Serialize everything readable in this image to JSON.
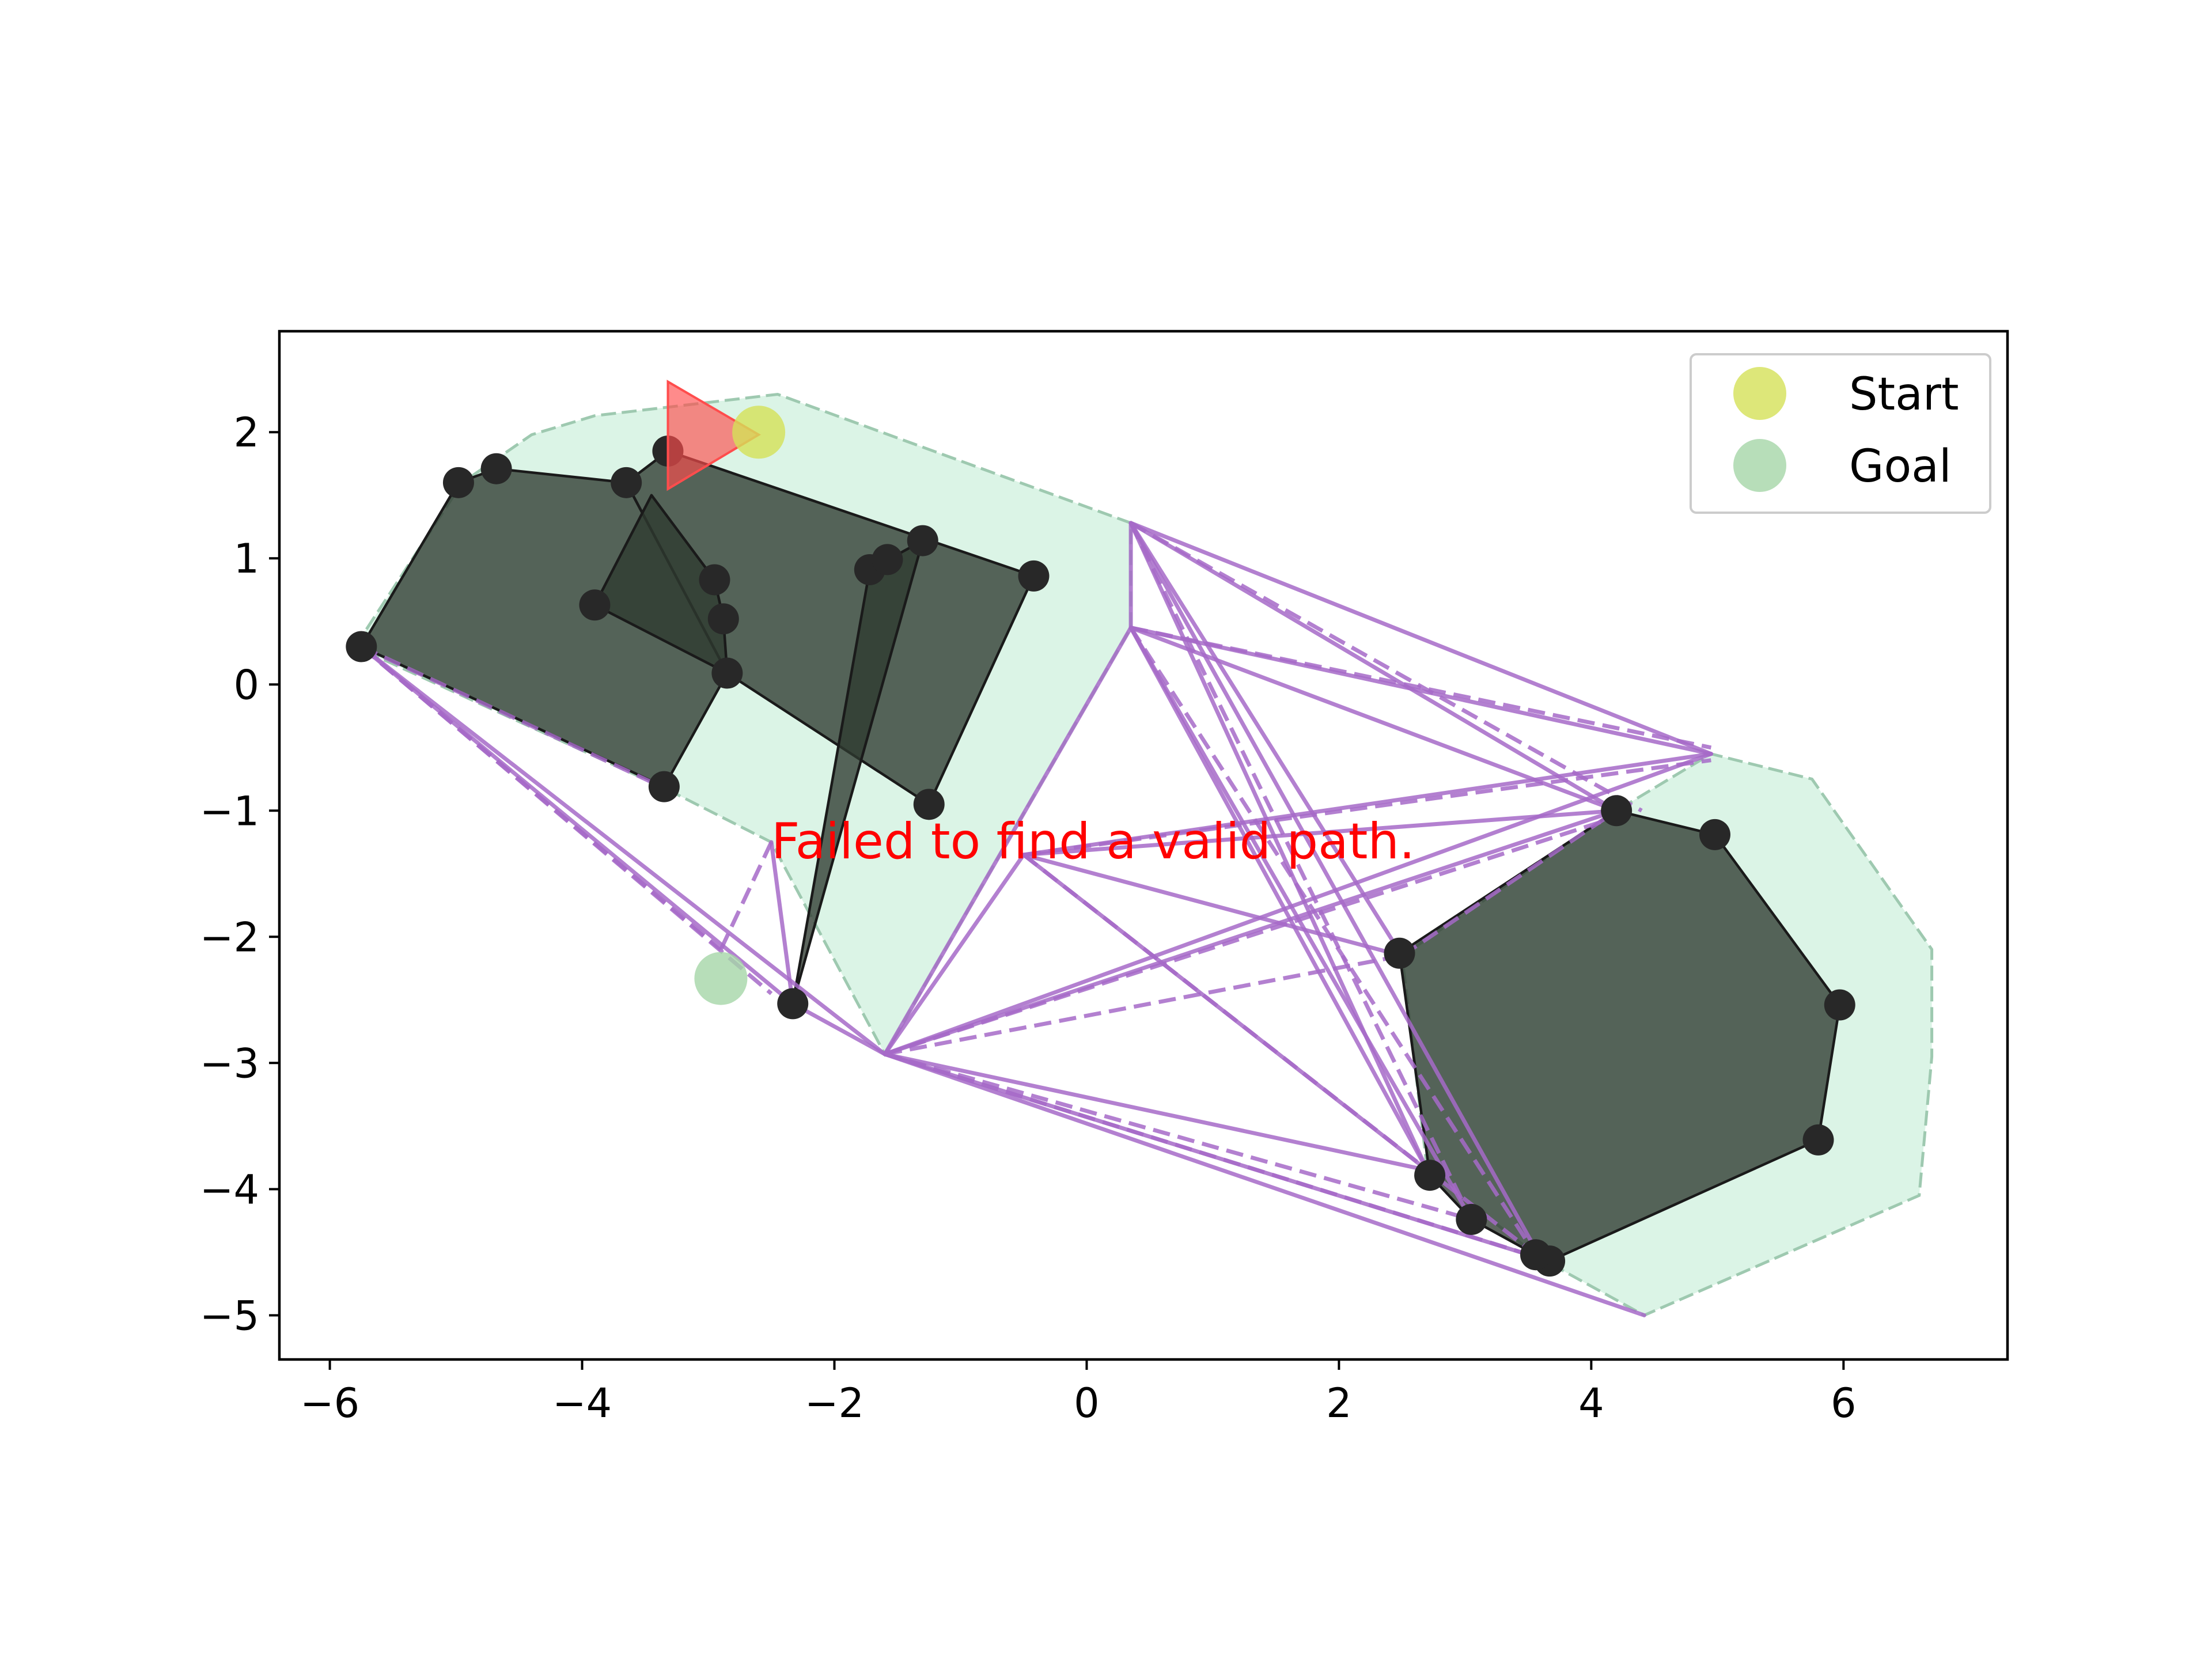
{
  "chart_data": {
    "type": "scatter",
    "title": "",
    "xlabel": "",
    "ylabel": "",
    "xlim": [
      -6.4,
      7.3
    ],
    "ylim": [
      -5.35,
      2.8
    ],
    "xticks": [
      -6,
      -4,
      -2,
      0,
      2,
      4,
      6
    ],
    "yticks": [
      -5,
      -4,
      -3,
      -2,
      -1,
      0,
      1,
      2
    ],
    "grid": false,
    "legend": {
      "placement": "top-right",
      "entries": [
        {
          "label": "Start",
          "color": "#d4e157"
        },
        {
          "label": "Goal",
          "color": "#a5d6a7"
        }
      ]
    },
    "message": {
      "text": "Failed to find a valid path.",
      "x": -2.5,
      "y": -1.25,
      "color": "#ff0000"
    },
    "start": {
      "x": -2.6,
      "y": 2.0
    },
    "goal": {
      "x": -2.9,
      "y": -2.33
    },
    "robot": {
      "type": "triangle",
      "vertices": [
        [
          -3.32,
          2.4
        ],
        [
          -3.32,
          1.55
        ],
        [
          -2.6,
          1.98
        ]
      ],
      "color": "#ff4d4d"
    },
    "colors": {
      "obstacle": "#2e3a30",
      "inflated": "#c8eed8",
      "roadmap": "#a66ac8",
      "vertex": "#282828"
    },
    "inflated_regions": [
      [
        [
          -5.8,
          0.3
        ],
        [
          -4.95,
          1.6
        ],
        [
          -4.4,
          1.98
        ],
        [
          -3.9,
          2.13
        ],
        [
          -2.45,
          2.3
        ],
        [
          0.35,
          1.28
        ],
        [
          0.35,
          0.45
        ],
        [
          -1.6,
          -2.93
        ],
        [
          -2.5,
          -1.25
        ],
        [
          -3.35,
          -0.82
        ]
      ],
      [
        [
          3.6,
          -4.55
        ],
        [
          2.7,
          -3.85
        ],
        [
          2.5,
          -2.15
        ],
        [
          4.2,
          -1.0
        ],
        [
          4.95,
          -0.55
        ],
        [
          5.75,
          -0.75
        ],
        [
          6.7,
          -2.1
        ],
        [
          6.7,
          -2.95
        ],
        [
          6.6,
          -4.05
        ],
        [
          4.42,
          -5.0
        ]
      ]
    ],
    "obstacles": [
      [
        [
          -5.75,
          0.3
        ],
        [
          -4.98,
          1.6
        ],
        [
          -4.68,
          1.71
        ],
        [
          -3.65,
          1.6
        ],
        [
          -2.85,
          0.09
        ],
        [
          -3.35,
          -0.81
        ]
      ],
      [
        [
          -3.32,
          1.85
        ],
        [
          -0.42,
          0.86
        ],
        [
          -1.25,
          -0.95
        ],
        [
          -2.85,
          0.09
        ],
        [
          -3.65,
          1.6
        ]
      ],
      [
        [
          -3.9,
          0.63
        ],
        [
          -3.45,
          1.5
        ],
        [
          -2.95,
          0.83
        ],
        [
          -2.88,
          0.52
        ],
        [
          -2.85,
          0.09
        ]
      ],
      [
        [
          -1.72,
          0.91
        ],
        [
          -1.3,
          1.14
        ],
        [
          -2.33,
          -2.53
        ]
      ],
      [
        [
          4.2,
          -1.0
        ],
        [
          4.98,
          -1.19
        ],
        [
          5.97,
          -2.54
        ],
        [
          5.8,
          -3.61
        ],
        [
          3.67,
          -4.57
        ],
        [
          3.56,
          -4.52
        ],
        [
          3.05,
          -4.24
        ],
        [
          2.72,
          -3.89
        ],
        [
          2.48,
          -2.13
        ]
      ]
    ],
    "vertices": [
      [
        -5.75,
        0.3
      ],
      [
        -4.98,
        1.6
      ],
      [
        -4.68,
        1.71
      ],
      [
        -3.65,
        1.6
      ],
      [
        -3.32,
        1.85
      ],
      [
        -3.9,
        0.63
      ],
      [
        -2.95,
        0.83
      ],
      [
        -2.88,
        0.52
      ],
      [
        -2.85,
        0.09
      ],
      [
        -3.35,
        -0.81
      ],
      [
        -1.72,
        0.91
      ],
      [
        -1.58,
        0.99
      ],
      [
        -1.3,
        1.14
      ],
      [
        -0.42,
        0.86
      ],
      [
        -1.25,
        -0.95
      ],
      [
        -2.33,
        -2.53
      ],
      [
        4.2,
        -1.0
      ],
      [
        4.98,
        -1.19
      ],
      [
        5.97,
        -2.54
      ],
      [
        5.8,
        -3.61
      ],
      [
        3.67,
        -4.57
      ],
      [
        3.56,
        -4.52
      ],
      [
        3.05,
        -4.24
      ],
      [
        2.72,
        -3.89
      ],
      [
        2.48,
        -2.13
      ]
    ],
    "roadmap_solid": [
      [
        [
          0.35,
          1.28
        ],
        [
          4.95,
          -0.55
        ]
      ],
      [
        [
          0.35,
          1.28
        ],
        [
          4.2,
          -1.0
        ]
      ],
      [
        [
          0.35,
          1.28
        ],
        [
          2.7,
          -3.85
        ]
      ],
      [
        [
          0.35,
          1.28
        ],
        [
          3.6,
          -4.55
        ]
      ],
      [
        [
          0.35,
          1.28
        ],
        [
          2.5,
          -2.15
        ]
      ],
      [
        [
          0.35,
          0.45
        ],
        [
          4.95,
          -0.55
        ]
      ],
      [
        [
          0.35,
          0.45
        ],
        [
          4.2,
          -1.0
        ]
      ],
      [
        [
          0.35,
          0.45
        ],
        [
          2.7,
          -3.85
        ]
      ],
      [
        [
          0.35,
          0.45
        ],
        [
          3.05,
          -4.24
        ]
      ],
      [
        [
          0.35,
          0.45
        ],
        [
          -1.6,
          -2.93
        ]
      ],
      [
        [
          -0.5,
          -1.35
        ],
        [
          4.95,
          -0.55
        ]
      ],
      [
        [
          -0.5,
          -1.35
        ],
        [
          4.2,
          -1.0
        ]
      ],
      [
        [
          -0.5,
          -1.35
        ],
        [
          2.5,
          -2.15
        ]
      ],
      [
        [
          -0.5,
          -1.35
        ],
        [
          2.7,
          -3.85
        ]
      ],
      [
        [
          -0.5,
          -1.35
        ],
        [
          -1.6,
          -2.93
        ]
      ],
      [
        [
          -1.6,
          -2.93
        ],
        [
          4.2,
          -1.0
        ]
      ],
      [
        [
          -1.6,
          -2.93
        ],
        [
          4.95,
          -0.55
        ]
      ],
      [
        [
          -1.6,
          -2.93
        ],
        [
          2.7,
          -3.85
        ]
      ],
      [
        [
          -1.6,
          -2.93
        ],
        [
          3.6,
          -4.55
        ]
      ],
      [
        [
          -1.6,
          -2.93
        ],
        [
          4.42,
          -5.0
        ]
      ],
      [
        [
          -5.75,
          0.3
        ],
        [
          -2.33,
          -2.53
        ]
      ],
      [
        [
          -5.75,
          0.3
        ],
        [
          -1.6,
          -2.93
        ]
      ],
      [
        [
          -2.5,
          -1.25
        ],
        [
          -2.33,
          -2.53
        ]
      ],
      [
        [
          0.35,
          1.28
        ],
        [
          0.35,
          0.45
        ]
      ],
      [
        [
          -2.33,
          -2.53
        ],
        [
          -1.6,
          -2.93
        ]
      ]
    ],
    "roadmap_dashed": [
      [
        [
          0.35,
          1.28
        ],
        [
          4.4,
          -1.0
        ]
      ],
      [
        [
          0.35,
          1.28
        ],
        [
          3.05,
          -4.24
        ]
      ],
      [
        [
          0.35,
          0.45
        ],
        [
          3.56,
          -4.52
        ]
      ],
      [
        [
          -0.5,
          -1.35
        ],
        [
          3.6,
          -4.55
        ]
      ],
      [
        [
          -1.6,
          -2.93
        ],
        [
          2.5,
          -2.15
        ]
      ],
      [
        [
          -1.6,
          -2.93
        ],
        [
          3.05,
          -4.24
        ]
      ],
      [
        [
          -1.6,
          -2.93
        ],
        [
          3.67,
          -4.57
        ]
      ],
      [
        [
          -5.75,
          0.3
        ],
        [
          -2.9,
          -2.1
        ]
      ],
      [
        [
          -5.75,
          0.3
        ],
        [
          -2.5,
          -2.45
        ]
      ],
      [
        [
          -2.5,
          -1.25
        ],
        [
          -2.9,
          -2.1
        ]
      ],
      [
        [
          -5.75,
          0.3
        ],
        [
          -3.35,
          -0.82
        ]
      ],
      [
        [
          -0.5,
          -1.35
        ],
        [
          4.95,
          -0.6
        ]
      ],
      [
        [
          0.35,
          0.45
        ],
        [
          4.95,
          -0.5
        ]
      ],
      [
        [
          -1.6,
          -2.93
        ],
        [
          4.2,
          -1.05
        ]
      ],
      [
        [
          2.5,
          -2.15
        ],
        [
          4.2,
          -1.0
        ]
      ]
    ]
  }
}
